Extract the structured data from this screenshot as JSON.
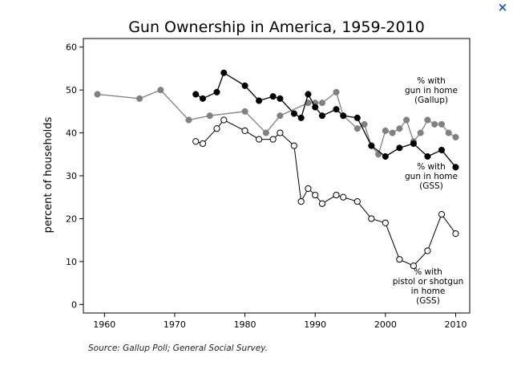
{
  "window": {
    "close_label": "×",
    "close_icon": "close-icon"
  },
  "chart_data": {
    "type": "line",
    "title": "Gun Ownership in America, 1959-2010",
    "xlabel": "",
    "ylabel": "percent of households",
    "xlim": [
      1957,
      2012
    ],
    "ylim": [
      -2,
      62
    ],
    "xticks": [
      1960,
      1970,
      1980,
      1990,
      2000,
      2010
    ],
    "yticks": [
      0,
      10,
      20,
      30,
      40,
      50,
      60
    ],
    "grid": false,
    "source": "Source: Gallup Poll; General Social Survey.",
    "series": [
      {
        "name": "% with gun in home (Gallup)",
        "label_lines": [
          "% with",
          "gun in home",
          "(Gallup)"
        ],
        "color": "#808080",
        "marker": "filled",
        "points": [
          [
            1959,
            49
          ],
          [
            1965,
            48
          ],
          [
            1968,
            50
          ],
          [
            1972,
            43
          ],
          [
            1975,
            44
          ],
          [
            1980,
            45
          ],
          [
            1983,
            40
          ],
          [
            1985,
            44
          ],
          [
            1989,
            47
          ],
          [
            1990,
            47
          ],
          [
            1991,
            47
          ],
          [
            1993,
            49.5
          ],
          [
            1994,
            44
          ],
          [
            1996,
            41
          ],
          [
            1997,
            42
          ],
          [
            1998,
            37
          ],
          [
            1999,
            35
          ],
          [
            2000,
            40.5
          ],
          [
            2001,
            40
          ],
          [
            2002,
            41
          ],
          [
            2003,
            43
          ],
          [
            2004,
            38
          ],
          [
            2005,
            40
          ],
          [
            2006,
            43
          ],
          [
            2007,
            42
          ],
          [
            2008,
            42
          ],
          [
            2009,
            40
          ],
          [
            2010,
            39
          ]
        ]
      },
      {
        "name": "% with gun in home (GSS)",
        "label_lines": [
          "% with",
          "gun in home",
          "(GSS)"
        ],
        "color": "#000000",
        "marker": "filled",
        "points": [
          [
            1973,
            49
          ],
          [
            1974,
            48
          ],
          [
            1976,
            49.5
          ],
          [
            1977,
            54
          ],
          [
            1980,
            51
          ],
          [
            1982,
            47.5
          ],
          [
            1984,
            48.5
          ],
          [
            1985,
            48
          ],
          [
            1987,
            44.5
          ],
          [
            1988,
            43.5
          ],
          [
            1989,
            49
          ],
          [
            1990,
            46
          ],
          [
            1991,
            44
          ],
          [
            1993,
            45.5
          ],
          [
            1994,
            44
          ],
          [
            1996,
            43.5
          ],
          [
            1998,
            37
          ],
          [
            2000,
            34.5
          ],
          [
            2002,
            36.5
          ],
          [
            2004,
            37.5
          ],
          [
            2006,
            34.5
          ],
          [
            2008,
            36
          ],
          [
            2010,
            32
          ]
        ]
      },
      {
        "name": "% with pistol or shotgun in home (GSS)",
        "label_lines": [
          "% with",
          "pistol or shotgun",
          "in home",
          "(GSS)"
        ],
        "color": "#000000",
        "marker": "hollow",
        "points": [
          [
            1973,
            38
          ],
          [
            1974,
            37.5
          ],
          [
            1976,
            41
          ],
          [
            1977,
            43
          ],
          [
            1980,
            40.5
          ],
          [
            1982,
            38.5
          ],
          [
            1984,
            38.5
          ],
          [
            1985,
            40
          ],
          [
            1987,
            37
          ],
          [
            1988,
            24
          ],
          [
            1989,
            27
          ],
          [
            1990,
            25.5
          ],
          [
            1991,
            23.5
          ],
          [
            1993,
            25.5
          ],
          [
            1994,
            25
          ],
          [
            1996,
            24
          ],
          [
            1998,
            20
          ],
          [
            2000,
            19
          ],
          [
            2002,
            10.5
          ],
          [
            2004,
            9
          ],
          [
            2006,
            12.5
          ],
          [
            2008,
            21
          ],
          [
            2010,
            16.5
          ]
        ]
      }
    ]
  }
}
